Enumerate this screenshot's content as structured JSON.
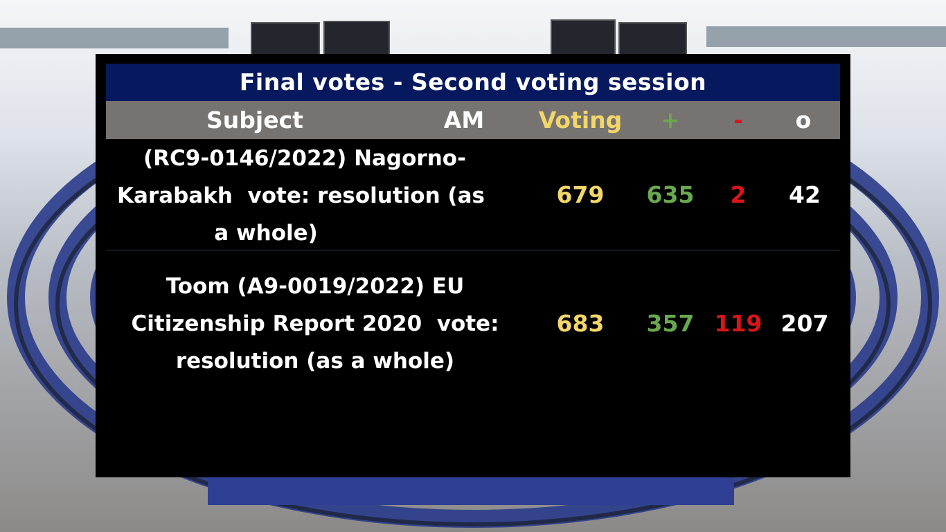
{
  "title": "Final votes - Second voting session",
  "headers": {
    "subject": "Subject",
    "am": "AM",
    "voting": "Voting",
    "plus": "+",
    "minus": "-",
    "abstain": "o"
  },
  "colors": {
    "title_bg": "#07195e",
    "header_bg": "#777370",
    "voting": "#f3d66a",
    "plus": "#6aa84f",
    "minus": "#d8161a",
    "abstain": "#ffffff"
  },
  "rows": [
    {
      "subject_lines": [
        "(RC9-0146/2022) Nagorno-",
        "Karabakh  vote: resolution (as",
        "             a whole)"
      ],
      "voting": "679",
      "plus": "635",
      "minus": "2",
      "abstain": "42"
    },
    {
      "subject_lines": [
        "Toom (A9-0019/2022) EU",
        "Citizenship Report 2020  vote:",
        "resolution (as a whole)"
      ],
      "voting": "683",
      "plus": "357",
      "minus": "119",
      "abstain": "207"
    }
  ]
}
